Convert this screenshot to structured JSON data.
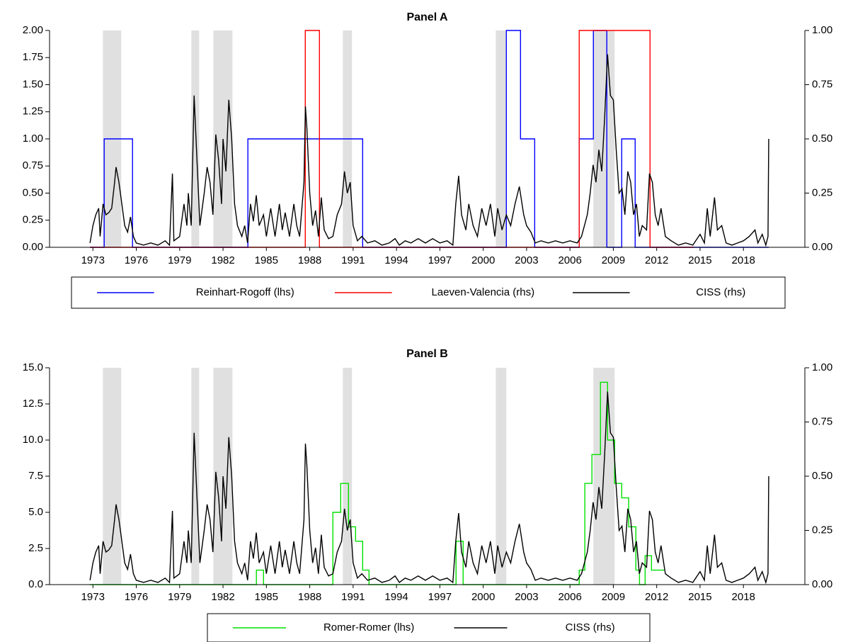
{
  "chart_data": [
    {
      "type": "line",
      "title": "Panel A",
      "xlim": [
        1970,
        2022.25
      ],
      "xticks": [
        1973,
        1976,
        1979,
        1982,
        1985,
        1988,
        1991,
        1994,
        1997,
        2000,
        2003,
        2006,
        2009,
        2012,
        2015,
        2018
      ],
      "ylim": [
        0,
        2
      ],
      "yticks": [
        {
          "value": 0,
          "label": "0.00"
        },
        {
          "value": 0.25,
          "label": "0.25"
        },
        {
          "value": 0.5,
          "label": "0.50"
        },
        {
          "value": 0.75,
          "label": "0.75"
        },
        {
          "value": 1,
          "label": "1.00"
        },
        {
          "value": 1.25,
          "label": "1.25"
        },
        {
          "value": 1.5,
          "label": "1.50"
        },
        {
          "value": 1.75,
          "label": "1.75"
        },
        {
          "value": 2,
          "label": "2.00"
        }
      ],
      "y2lim": [
        0,
        1
      ],
      "y2ticks": [
        {
          "value": 0,
          "label": "0.00"
        },
        {
          "value": 0.25,
          "label": "0.25"
        },
        {
          "value": 0.5,
          "label": "0.50"
        },
        {
          "value": 0.75,
          "label": "0.75"
        },
        {
          "value": 1,
          "label": "1.00"
        }
      ],
      "shaded_periods": [
        [
          1973.69,
          1974.96
        ],
        [
          1979.81,
          1980.35
        ],
        [
          1981.33,
          1982.65
        ],
        [
          1990.29,
          1990.92
        ],
        [
          2000.87,
          2001.6
        ],
        [
          2007.62,
          2009.09
        ]
      ],
      "shade_color": "#e0e0e0",
      "series": [
        {
          "name": "Reinhart-Rogoff (lhs)",
          "color": "#0000ff",
          "axis": "y",
          "step": true,
          "x": [
            1972.8,
            1973.78,
            1975.74,
            1983.72,
            1991.66,
            2001.6,
            2002.58,
            2003.56,
            2006.64,
            2007.62,
            2008.55,
            2009.58,
            2010.51,
            2019.75
          ],
          "values": [
            0,
            1,
            0,
            1,
            0,
            2,
            1,
            0,
            1,
            2,
            0,
            1,
            0,
            0
          ]
        },
        {
          "name": "Laeven-Valencia (rhs)",
          "color": "#ff0000",
          "axis": "y2",
          "step": true,
          "x": [
            1972.8,
            1987.69,
            1988.67,
            2006.64,
            2011.54,
            2014.58
          ],
          "values": [
            0,
            1,
            0,
            1,
            0,
            0
          ]
        },
        {
          "name": "CISS (rhs)",
          "color": "#000000",
          "axis": "y2",
          "step": false,
          "x": [
            1972.8,
            1973.0,
            1973.2,
            1973.4,
            1973.5,
            1973.7,
            1973.9,
            1974.1,
            1974.3,
            1974.5,
            1974.6,
            1974.8,
            1975.0,
            1975.2,
            1975.4,
            1975.6,
            1975.8,
            1976.0,
            1976.5,
            1977.0,
            1977.5,
            1978.0,
            1978.3,
            1978.5,
            1978.6,
            1979.0,
            1979.3,
            1979.5,
            1979.6,
            1979.8,
            1980.0,
            1980.2,
            1980.4,
            1980.7,
            1980.9,
            1981.1,
            1981.3,
            1981.5,
            1981.7,
            1981.9,
            1982.0,
            1982.2,
            1982.4,
            1982.6,
            1982.8,
            1983.0,
            1983.3,
            1983.5,
            1983.7,
            1983.9,
            1984.1,
            1984.3,
            1984.5,
            1984.8,
            1985.0,
            1985.3,
            1985.6,
            1985.9,
            1986.1,
            1986.3,
            1986.6,
            1986.9,
            1987.1,
            1987.3,
            1987.6,
            1987.7,
            1987.8,
            1988.0,
            1988.2,
            1988.4,
            1988.6,
            1988.8,
            1989.0,
            1989.3,
            1989.6,
            1989.9,
            1990.2,
            1990.4,
            1990.6,
            1990.8,
            1991.0,
            1991.3,
            1991.6,
            1992.0,
            1992.5,
            1993.0,
            1993.5,
            1993.9,
            1994.2,
            1994.6,
            1995.0,
            1995.5,
            1996.0,
            1996.5,
            1997.0,
            1997.5,
            1997.9,
            1998.1,
            1998.3,
            1998.5,
            1998.8,
            1999.0,
            1999.3,
            1999.6,
            1999.9,
            2000.2,
            2000.5,
            2000.8,
            2001.0,
            2001.3,
            2001.6,
            2001.9,
            2002.2,
            2002.5,
            2002.8,
            2003.0,
            2003.3,
            2003.6,
            2004.0,
            2004.5,
            2005.0,
            2005.5,
            2006.0,
            2006.5,
            2006.8,
            2007.0,
            2007.2,
            2007.4,
            2007.6,
            2007.8,
            2008.0,
            2008.2,
            2008.4,
            2008.6,
            2008.8,
            2009.0,
            2009.2,
            2009.4,
            2009.6,
            2009.8,
            2010.0,
            2010.2,
            2010.4,
            2010.6,
            2010.8,
            2011.0,
            2011.3,
            2011.5,
            2011.7,
            2011.9,
            2012.1,
            2012.3,
            2012.6,
            2013.0,
            2013.5,
            2014.0,
            2014.5,
            2015.0,
            2015.3,
            2015.5,
            2015.7,
            2016.0,
            2016.2,
            2016.5,
            2016.8,
            2017.2,
            2017.6,
            2018.0,
            2018.4,
            2018.8,
            2019.0,
            2019.3,
            2019.55,
            2019.7,
            2019.75
          ],
          "values": [
            0.02,
            0.1,
            0.15,
            0.18,
            0.05,
            0.2,
            0.15,
            0.16,
            0.18,
            0.3,
            0.37,
            0.3,
            0.2,
            0.1,
            0.07,
            0.14,
            0.05,
            0.02,
            0.01,
            0.02,
            0.01,
            0.03,
            0.01,
            0.34,
            0.03,
            0.05,
            0.2,
            0.1,
            0.25,
            0.1,
            0.7,
            0.4,
            0.1,
            0.25,
            0.37,
            0.3,
            0.15,
            0.52,
            0.4,
            0.2,
            0.5,
            0.35,
            0.68,
            0.5,
            0.2,
            0.1,
            0.05,
            0.1,
            0.02,
            0.2,
            0.12,
            0.24,
            0.1,
            0.15,
            0.05,
            0.18,
            0.05,
            0.2,
            0.08,
            0.16,
            0.05,
            0.2,
            0.1,
            0.05,
            0.3,
            0.65,
            0.55,
            0.25,
            0.1,
            0.17,
            0.05,
            0.23,
            0.08,
            0.04,
            0.05,
            0.15,
            0.2,
            0.35,
            0.25,
            0.3,
            0.1,
            0.03,
            0.05,
            0.02,
            0.03,
            0.01,
            0.02,
            0.04,
            0.01,
            0.03,
            0.02,
            0.04,
            0.02,
            0.04,
            0.02,
            0.03,
            0.01,
            0.2,
            0.33,
            0.15,
            0.08,
            0.2,
            0.1,
            0.05,
            0.18,
            0.1,
            0.2,
            0.05,
            0.18,
            0.08,
            0.15,
            0.1,
            0.2,
            0.28,
            0.15,
            0.1,
            0.07,
            0.02,
            0.03,
            0.02,
            0.03,
            0.02,
            0.03,
            0.02,
            0.05,
            0.1,
            0.15,
            0.25,
            0.38,
            0.3,
            0.45,
            0.35,
            0.6,
            0.89,
            0.7,
            0.68,
            0.45,
            0.25,
            0.27,
            0.15,
            0.35,
            0.3,
            0.15,
            0.2,
            0.05,
            0.1,
            0.08,
            0.34,
            0.3,
            0.15,
            0.1,
            0.18,
            0.05,
            0.03,
            0.01,
            0.02,
            0.01,
            0.06,
            0.02,
            0.18,
            0.05,
            0.23,
            0.08,
            0.1,
            0.02,
            0.01,
            0.02,
            0.03,
            0.05,
            0.08,
            0.02,
            0.06,
            0.01,
            0.05,
            0.5
          ]
        }
      ]
    },
    {
      "type": "line",
      "title": "Panel B",
      "xlim": [
        1970,
        2022.25
      ],
      "xticks": [
        1973,
        1976,
        1979,
        1982,
        1985,
        1988,
        1991,
        1994,
        1997,
        2000,
        2003,
        2006,
        2009,
        2012,
        2015,
        2018
      ],
      "ylim": [
        0,
        15
      ],
      "yticks": [
        {
          "value": 0,
          "label": "0.0"
        },
        {
          "value": 2.5,
          "label": "2.5"
        },
        {
          "value": 5,
          "label": "5.0"
        },
        {
          "value": 7.5,
          "label": "7.5"
        },
        {
          "value": 10,
          "label": "10.0"
        },
        {
          "value": 12.5,
          "label": "12.5"
        },
        {
          "value": 15,
          "label": "15.0"
        }
      ],
      "y2lim": [
        0,
        1
      ],
      "y2ticks": [
        {
          "value": 0,
          "label": "0.00"
        },
        {
          "value": 0.25,
          "label": "0.25"
        },
        {
          "value": 0.5,
          "label": "0.50"
        },
        {
          "value": 0.75,
          "label": "0.75"
        },
        {
          "value": 1,
          "label": "1.00"
        }
      ],
      "shaded_periods": [
        [
          1973.69,
          1974.96
        ],
        [
          1979.81,
          1980.35
        ],
        [
          1981.33,
          1982.65
        ],
        [
          1990.29,
          1990.92
        ],
        [
          2000.87,
          2001.6
        ],
        [
          2007.62,
          2009.09
        ]
      ],
      "shade_color": "#e0e0e0",
      "series": [
        {
          "name": "Romer-Romer (lhs)",
          "color": "#00e000",
          "axis": "y",
          "step": true,
          "x": [
            1972.8,
            1984.31,
            1984.8,
            1989.6,
            1990.14,
            1990.68,
            1991.17,
            1991.66,
            1992.1,
            1998.12,
            1998.61,
            2006.64,
            2007.03,
            2007.52,
            2008.11,
            2008.6,
            2009.09,
            2009.58,
            2010.06,
            2010.56,
            2010.81,
            2011.2,
            2011.64,
            2012.52
          ],
          "values": [
            0,
            1,
            0,
            5,
            7,
            4,
            3,
            1,
            0,
            3,
            0,
            1,
            7,
            9,
            14,
            10,
            7,
            6,
            4,
            1,
            0,
            2,
            1,
            1
          ]
        },
        {
          "name": "CISS (rhs)",
          "color": "#000000",
          "axis": "y2",
          "step": false,
          "x": [
            1972.8,
            1973.0,
            1973.2,
            1973.4,
            1973.5,
            1973.7,
            1973.9,
            1974.1,
            1974.3,
            1974.5,
            1974.6,
            1974.8,
            1975.0,
            1975.2,
            1975.4,
            1975.6,
            1975.8,
            1976.0,
            1976.5,
            1977.0,
            1977.5,
            1978.0,
            1978.3,
            1978.5,
            1978.6,
            1979.0,
            1979.3,
            1979.5,
            1979.6,
            1979.8,
            1980.0,
            1980.2,
            1980.4,
            1980.7,
            1980.9,
            1981.1,
            1981.3,
            1981.5,
            1981.7,
            1981.9,
            1982.0,
            1982.2,
            1982.4,
            1982.6,
            1982.8,
            1983.0,
            1983.3,
            1983.5,
            1983.7,
            1983.9,
            1984.1,
            1984.3,
            1984.5,
            1984.8,
            1985.0,
            1985.3,
            1985.6,
            1985.9,
            1986.1,
            1986.3,
            1986.6,
            1986.9,
            1987.1,
            1987.3,
            1987.6,
            1987.7,
            1987.8,
            1988.0,
            1988.2,
            1988.4,
            1988.6,
            1988.8,
            1989.0,
            1989.3,
            1989.6,
            1989.9,
            1990.2,
            1990.4,
            1990.6,
            1990.8,
            1991.0,
            1991.3,
            1991.6,
            1992.0,
            1992.5,
            1993.0,
            1993.5,
            1993.9,
            1994.2,
            1994.6,
            1995.0,
            1995.5,
            1996.0,
            1996.5,
            1997.0,
            1997.5,
            1997.9,
            1998.1,
            1998.3,
            1998.5,
            1998.8,
            1999.0,
            1999.3,
            1999.6,
            1999.9,
            2000.2,
            2000.5,
            2000.8,
            2001.0,
            2001.3,
            2001.6,
            2001.9,
            2002.2,
            2002.5,
            2002.8,
            2003.0,
            2003.3,
            2003.6,
            2004.0,
            2004.5,
            2005.0,
            2005.5,
            2006.0,
            2006.5,
            2006.8,
            2007.0,
            2007.2,
            2007.4,
            2007.6,
            2007.8,
            2008.0,
            2008.2,
            2008.4,
            2008.6,
            2008.8,
            2009.0,
            2009.2,
            2009.4,
            2009.6,
            2009.8,
            2010.0,
            2010.2,
            2010.4,
            2010.6,
            2010.8,
            2011.0,
            2011.3,
            2011.5,
            2011.7,
            2011.9,
            2012.1,
            2012.3,
            2012.6,
            2013.0,
            2013.5,
            2014.0,
            2014.5,
            2015.0,
            2015.3,
            2015.5,
            2015.7,
            2016.0,
            2016.2,
            2016.5,
            2016.8,
            2017.2,
            2017.6,
            2018.0,
            2018.4,
            2018.8,
            2019.0,
            2019.3,
            2019.55,
            2019.7,
            2019.75
          ],
          "values": [
            0.02,
            0.1,
            0.15,
            0.18,
            0.05,
            0.2,
            0.15,
            0.16,
            0.18,
            0.3,
            0.37,
            0.3,
            0.2,
            0.1,
            0.07,
            0.14,
            0.05,
            0.02,
            0.01,
            0.02,
            0.01,
            0.03,
            0.01,
            0.34,
            0.03,
            0.05,
            0.2,
            0.1,
            0.25,
            0.1,
            0.7,
            0.4,
            0.1,
            0.25,
            0.37,
            0.3,
            0.15,
            0.52,
            0.4,
            0.2,
            0.5,
            0.35,
            0.68,
            0.5,
            0.2,
            0.1,
            0.05,
            0.1,
            0.02,
            0.2,
            0.12,
            0.24,
            0.1,
            0.15,
            0.05,
            0.18,
            0.05,
            0.2,
            0.08,
            0.16,
            0.05,
            0.2,
            0.1,
            0.05,
            0.3,
            0.65,
            0.55,
            0.25,
            0.1,
            0.17,
            0.05,
            0.23,
            0.08,
            0.04,
            0.05,
            0.15,
            0.2,
            0.35,
            0.25,
            0.3,
            0.1,
            0.03,
            0.05,
            0.02,
            0.03,
            0.01,
            0.02,
            0.04,
            0.01,
            0.03,
            0.02,
            0.04,
            0.02,
            0.04,
            0.02,
            0.03,
            0.01,
            0.2,
            0.33,
            0.15,
            0.08,
            0.2,
            0.1,
            0.05,
            0.18,
            0.1,
            0.2,
            0.05,
            0.18,
            0.08,
            0.15,
            0.1,
            0.2,
            0.28,
            0.15,
            0.1,
            0.07,
            0.02,
            0.03,
            0.02,
            0.03,
            0.02,
            0.03,
            0.02,
            0.05,
            0.1,
            0.15,
            0.25,
            0.38,
            0.3,
            0.45,
            0.35,
            0.6,
            0.89,
            0.7,
            0.68,
            0.45,
            0.25,
            0.27,
            0.15,
            0.35,
            0.3,
            0.15,
            0.2,
            0.05,
            0.1,
            0.08,
            0.34,
            0.3,
            0.15,
            0.1,
            0.18,
            0.05,
            0.03,
            0.01,
            0.02,
            0.01,
            0.06,
            0.02,
            0.18,
            0.05,
            0.23,
            0.08,
            0.1,
            0.02,
            0.01,
            0.02,
            0.03,
            0.05,
            0.08,
            0.02,
            0.06,
            0.01,
            0.05,
            0.5
          ]
        }
      ]
    }
  ]
}
